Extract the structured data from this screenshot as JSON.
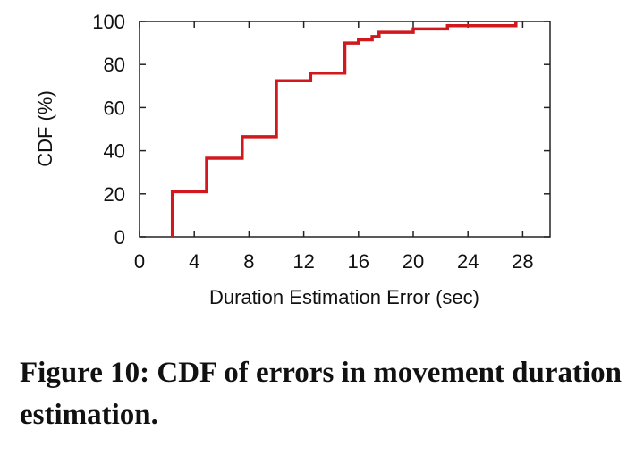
{
  "caption": "Figure 10: CDF of errors in movement duration estimation.",
  "chart_data": {
    "type": "line",
    "step": true,
    "xlabel": "Duration Estimation Error (sec)",
    "ylabel": "CDF (%)",
    "xlim": [
      0,
      30
    ],
    "ylim": [
      0,
      100
    ],
    "xticks": [
      0,
      4,
      8,
      12,
      16,
      20,
      24,
      28
    ],
    "yticks": [
      0,
      20,
      40,
      60,
      80,
      100
    ],
    "grid": false,
    "color": "#d0181d",
    "series": [
      {
        "x": [
          2.4,
          2.4,
          4.9,
          4.9,
          7.5,
          7.5,
          10.0,
          10.0,
          12.5,
          12.5,
          15.0,
          15.0,
          16.0,
          16.0,
          17.0,
          17.0,
          17.5,
          17.5,
          20.0,
          20.0,
          22.5,
          22.5,
          27.5,
          27.5
        ],
        "y": [
          0,
          21,
          21,
          36.5,
          36.5,
          46.5,
          46.5,
          72.5,
          72.5,
          76,
          76,
          90,
          90,
          91.5,
          91.5,
          93,
          93,
          95,
          95,
          96.5,
          96.5,
          98,
          98,
          100
        ]
      }
    ]
  }
}
